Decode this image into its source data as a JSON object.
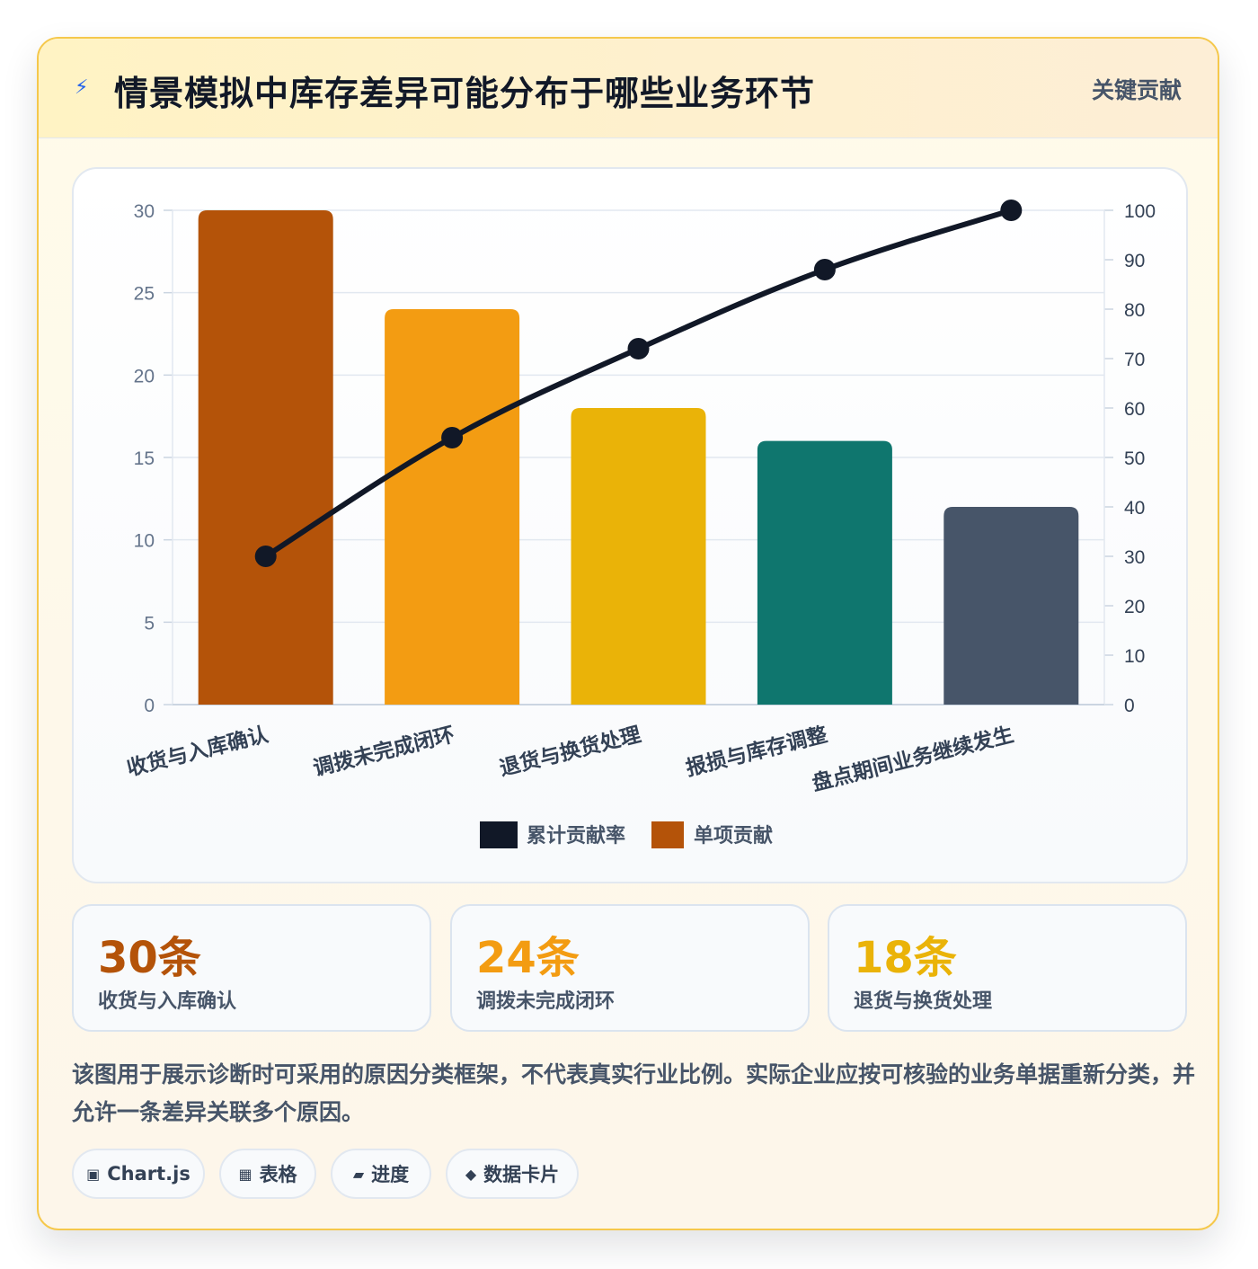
{
  "header": {
    "icon": "lightning-icon",
    "title": "情景模拟中库存差异可能分布于哪些业务环节",
    "tag": "关键贡献"
  },
  "chart_data": {
    "type": "bar",
    "categories": [
      "收货与入库确认",
      "调拨未完成闭环",
      "退货与换货处理",
      "报损与库存调整",
      "盘点期间业务继续发生"
    ],
    "series": [
      {
        "name": "单项贡献",
        "type": "bar",
        "axis": "left",
        "values": [
          30,
          24,
          18,
          16,
          12
        ],
        "colors": [
          "#b45309",
          "#f39c12",
          "#eab308",
          "#0f766e",
          "#475569"
        ]
      },
      {
        "name": "累计贡献率",
        "type": "line",
        "axis": "right",
        "values": [
          30,
          54,
          72,
          88,
          100
        ],
        "color": "#111827"
      }
    ],
    "ylim": [
      0,
      30
    ],
    "y_ticks": [
      0,
      5,
      10,
      15,
      20,
      25,
      30
    ],
    "y2lim": [
      0,
      100
    ],
    "y2_ticks": [
      0,
      10,
      20,
      30,
      40,
      50,
      60,
      70,
      80,
      90,
      100
    ],
    "grid": true,
    "legend": "bottom",
    "legend_order": [
      "累计贡献率",
      "单项贡献"
    ]
  },
  "stats": [
    {
      "value": "30条",
      "label": "收货与入库确认",
      "color": "#b45309"
    },
    {
      "value": "24条",
      "label": "调拨未完成闭环",
      "color": "#f39c12"
    },
    {
      "value": "18条",
      "label": "退货与换货处理",
      "color": "#eab308"
    }
  ],
  "note": "该图用于展示诊断时可采用的原因分类框架，不代表真实行业比例。实际企业应按可核验的业务单据重新分类，并允许一条差异关联多个原因。",
  "chips": [
    {
      "icon": "▣",
      "label": "Chart.js"
    },
    {
      "icon": "▦",
      "label": "表格"
    },
    {
      "icon": "▰",
      "label": "进度"
    },
    {
      "icon": "◆",
      "label": "数据卡片"
    }
  ]
}
